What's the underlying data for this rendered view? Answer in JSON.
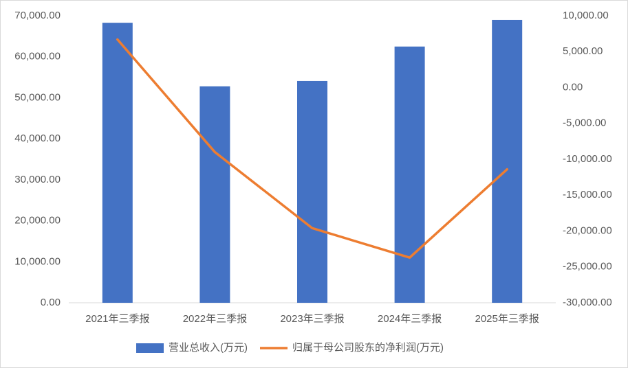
{
  "chart_data": {
    "type": "bar_line",
    "categories": [
      "2021年三季报",
      "2022年三季报",
      "2023年三季报",
      "2024年三季报",
      "2025年三季报"
    ],
    "series": [
      {
        "name": "营业总收入(万元)",
        "color": "#4472c4",
        "type": "bar",
        "values": [
          68300,
          52800,
          54100,
          62500,
          69000
        ]
      },
      {
        "name": "归属于母公司股东的净利润(万元)",
        "color": "#ed7d31",
        "type": "line",
        "axis": "y2",
        "values": [
          6700,
          -9000,
          -19600,
          -23700,
          -11400
        ]
      }
    ],
    "ylim": [
      0,
      70000
    ],
    "yticks": [
      {
        "value": 0,
        "label": "0.00"
      },
      {
        "value": 10000,
        "label": "10,000.00"
      },
      {
        "value": 20000,
        "label": "20,000.00"
      },
      {
        "value": 30000,
        "label": "30,000.00"
      },
      {
        "value": 40000,
        "label": "40,000.00"
      },
      {
        "value": 50000,
        "label": "50,000.00"
      },
      {
        "value": 60000,
        "label": "60,000.00"
      },
      {
        "value": 70000,
        "label": "70,000.00"
      }
    ],
    "y2lim": [
      -30000,
      10000
    ],
    "y2ticks": [
      {
        "value": -30000,
        "label": "-30,000.00"
      },
      {
        "value": -25000,
        "label": "-25,000.00"
      },
      {
        "value": -20000,
        "label": "-20,000.00"
      },
      {
        "value": -15000,
        "label": "-15,000.00"
      },
      {
        "value": -10000,
        "label": "-10,000.00"
      },
      {
        "value": -5000,
        "label": "-5,000.00"
      },
      {
        "value": 0,
        "label": "0.00"
      },
      {
        "value": 5000,
        "label": "5,000.00"
      },
      {
        "value": 10000,
        "label": "10,000.00"
      }
    ],
    "legend": "bottom"
  }
}
